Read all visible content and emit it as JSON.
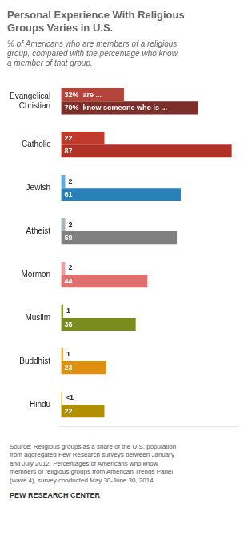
{
  "chart_data": {
    "type": "bar",
    "orientation": "horizontal",
    "title": "Personal Experience With Religious\nGroups Varies in U.S.",
    "subtitle": "% of Americans who are members of a religious\ngroup, compared with the percentage who know\na member of that group.",
    "categories": [
      "Evangelical\nChristian",
      "Catholic",
      "Jewish",
      "Atheist",
      "Mormon",
      "Muslim",
      "Buddhist",
      "Hindu"
    ],
    "series": [
      {
        "colors": [
          "#b5443a",
          "#c0392b",
          "#5dade2",
          "#aab7b8",
          "#e8a0a0",
          "#8a9a20",
          "#f0b429",
          "#c9aa00"
        ],
        "values": [
          32,
          22,
          2,
          2,
          2,
          1,
          1,
          0.5
        ],
        "value_labels": [
          "32%  are ...",
          "22",
          "2",
          "2",
          "2",
          "1",
          "1",
          "<1"
        ]
      },
      {
        "colors": [
          "#7d2e28",
          "#b03226",
          "#2980b9",
          "#808080",
          "#e07070",
          "#7a8c1e",
          "#e09010",
          "#b09000"
        ],
        "values": [
          70,
          87,
          61,
          59,
          44,
          38,
          23,
          22
        ],
        "value_labels": [
          "70%  know someone who is ...",
          "87",
          "61",
          "59",
          "44",
          "38",
          "23",
          "22"
        ]
      }
    ],
    "xlim": [
      -1,
      90
    ],
    "grid": false,
    "data_labels": true,
    "tick_labels": "y",
    "source": "Source: Religious groups as a share of the U.S. population\nfrom aggregated Pew Research surveys between January\nand July 2012. Percentages of Americans who know\nmembers of religious groups from American Trends Panel\n(wave 4), survey conducted May 30-June 30, 2014.",
    "footer": "PEW RESEARCH CENTER"
  }
}
